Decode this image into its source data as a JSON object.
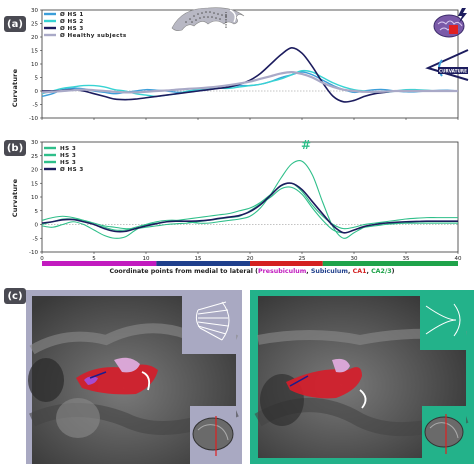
{
  "panels": {
    "a": {
      "badge": "(a)"
    },
    "b": {
      "badge": "(b)"
    },
    "c": {
      "badge": "(c)"
    }
  },
  "y_axis_label": "Curvature",
  "x_axis_caption": {
    "prefix": "Coordinate points from medial to lateral (",
    "parts": [
      {
        "text": "Presubiculum",
        "color": "#c21bbf"
      },
      {
        "text": "Subiculum",
        "color": "#1f3f8c"
      },
      {
        "text": "CA1",
        "color": "#d42020"
      },
      {
        "text": "CA2/3",
        "color": "#1fa34a"
      }
    ],
    "separator": ", ",
    "suffix": ")"
  },
  "region_bar": [
    {
      "name": "presubiculum",
      "color": "#c21bbf",
      "from": 0,
      "to": 11
    },
    {
      "name": "subiculum",
      "color": "#1f3f8c",
      "from": 11,
      "to": 20
    },
    {
      "name": "ca1",
      "color": "#d42020",
      "from": 20,
      "to": 27
    },
    {
      "name": "ca23",
      "color": "#1fa34a",
      "from": 27,
      "to": 40
    }
  ],
  "curvature_icon_label": "CURVATURE",
  "significance_marker": "#",
  "colors": {
    "hs1": "#3c9ed9",
    "hs2": "#37d3d3",
    "hs3": "#1c1c5e",
    "healthy": "#a9a9c7",
    "hs3_individual": "#2fbf8a",
    "panel_badge": "#4a4a52",
    "left_bg": "#a9a9c2",
    "right_bg": "#23b28a"
  },
  "chart_data": [
    {
      "type": "line",
      "panel": "a",
      "x": [
        0,
        1,
        2,
        3,
        4,
        5,
        6,
        7,
        8,
        9,
        10,
        11,
        12,
        13,
        14,
        15,
        16,
        17,
        18,
        19,
        20,
        21,
        22,
        23,
        24,
        25,
        26,
        27,
        28,
        29,
        30,
        31,
        32,
        33,
        34,
        35,
        36,
        37,
        38,
        39,
        40
      ],
      "xlim": [
        0,
        40
      ],
      "xticks": [
        0,
        5,
        10,
        15,
        20,
        25,
        30,
        35,
        40
      ],
      "yticks": [
        -10,
        -5,
        0,
        5,
        10,
        15,
        20,
        25,
        30
      ],
      "ylim": [
        -10,
        30
      ],
      "ylabel": "Curvature",
      "legend_position": "top-left",
      "series": [
        {
          "name": "Ø HS 1",
          "color": "#3c9ed9",
          "width": 1.4,
          "values": [
            -2,
            -1,
            0.5,
            1,
            0.8,
            0,
            -0.5,
            -1,
            -0.5,
            0,
            0.5,
            0.3,
            0,
            -0.5,
            -0.3,
            0,
            0.5,
            1,
            1.5,
            2,
            2,
            2.5,
            3.5,
            5,
            6,
            7,
            6,
            4,
            2,
            0.5,
            -0.5,
            0,
            0.5,
            0.5,
            0,
            -0.3,
            -0.3,
            0,
            0.2,
            0.3,
            0
          ]
        },
        {
          "name": "Ø HS 2",
          "color": "#37d3d3",
          "width": 1.4,
          "values": [
            -1,
            0,
            1,
            1.5,
            2,
            2,
            1.5,
            0.5,
            0,
            -1,
            -1.5,
            -2,
            -1.5,
            -1,
            0,
            0.5,
            1,
            1,
            1,
            1.5,
            2,
            2.5,
            3.5,
            4.5,
            6,
            7.5,
            7,
            5,
            3,
            1.5,
            0.5,
            0,
            -0.5,
            -0.5,
            0,
            0.5,
            0.5,
            0.3,
            0,
            0,
            0
          ]
        },
        {
          "name": "Ø HS 3",
          "color": "#1c1c5e",
          "width": 1.6,
          "values": [
            0,
            0,
            0.2,
            0.5,
            0,
            -1,
            -2,
            -3,
            -3.2,
            -3,
            -2.5,
            -2,
            -1.5,
            -1,
            -0.5,
            0,
            0.5,
            1,
            1.5,
            2.5,
            4,
            6.5,
            10,
            13.5,
            16,
            14,
            9,
            3,
            -2,
            -4,
            -3.5,
            -2,
            -1,
            -0.5,
            0,
            0,
            0,
            0,
            0,
            0,
            0
          ]
        },
        {
          "name": "Ø Healthy subjects",
          "color": "#a9a9c7",
          "width": 2.2,
          "values": [
            -0.5,
            -0.3,
            0,
            0.3,
            0.5,
            0.3,
            0,
            -0.3,
            -0.5,
            -0.5,
            -0.3,
            0,
            0.2,
            0.5,
            0.8,
            1,
            1.3,
            1.7,
            2.2,
            2.8,
            3.5,
            4.5,
            5.5,
            6.5,
            7,
            6.3,
            5,
            3,
            1.5,
            0.5,
            0,
            -0.3,
            -0.3,
            -0.2,
            0,
            0,
            0,
            0,
            0,
            0,
            0
          ]
        }
      ]
    },
    {
      "type": "line",
      "panel": "b",
      "x": [
        0,
        1,
        2,
        3,
        4,
        5,
        6,
        7,
        8,
        9,
        10,
        11,
        12,
        13,
        14,
        15,
        16,
        17,
        18,
        19,
        20,
        21,
        22,
        23,
        24,
        25,
        26,
        27,
        28,
        29,
        30,
        31,
        32,
        33,
        34,
        35,
        36,
        37,
        38,
        39,
        40
      ],
      "xlim": [
        0,
        40
      ],
      "xticks": [
        0,
        5,
        10,
        15,
        20,
        25,
        30,
        35,
        40
      ],
      "xticklabels": [
        "0",
        "5",
        "10",
        "15",
        "20",
        "25",
        "30",
        "35",
        "40"
      ],
      "yticks": [
        -10,
        -5,
        0,
        5,
        10,
        15,
        20,
        25,
        30
      ],
      "ylim": [
        -10,
        30
      ],
      "ylabel": "Curvature",
      "legend_position": "top-left",
      "series": [
        {
          "name": "HS 3",
          "color": "#2fbf8a",
          "width": 1.1,
          "values": [
            0,
            1,
            2,
            2,
            1.5,
            0.5,
            -0.5,
            -1,
            -1.5,
            -1.5,
            -1,
            -0.5,
            0,
            0.3,
            0.5,
            1,
            1.5,
            2,
            2.5,
            3,
            5,
            7.5,
            10,
            13,
            13.5,
            11,
            6,
            1.5,
            -2,
            -3,
            -2,
            -1,
            -0.5,
            0,
            0.3,
            0.5,
            0.5,
            0.5,
            0.5,
            0.5,
            0.5
          ]
        },
        {
          "name": "HS 3",
          "color": "#2fbf8a",
          "width": 1.1,
          "values": [
            -0.5,
            -1,
            0,
            1,
            0,
            -2,
            -4,
            -5,
            -4.5,
            -2,
            0,
            1,
            1.5,
            1.5,
            1,
            0.5,
            0.5,
            1,
            1.5,
            2,
            3,
            6,
            11,
            17,
            22,
            23,
            18,
            8,
            -1,
            -5,
            -3,
            -1,
            0,
            0.5,
            0.5,
            0.5,
            0.5,
            0.5,
            0.5,
            0.5,
            0.5
          ]
        },
        {
          "name": "HS 3",
          "color": "#2fbf8a",
          "width": 1.1,
          "values": [
            1.5,
            2.5,
            3,
            2.5,
            1.5,
            0,
            -1,
            -2,
            -2,
            -1,
            0,
            0.5,
            1,
            1.5,
            2,
            2.5,
            3,
            3.5,
            4,
            5,
            6,
            8,
            11,
            14,
            15,
            12,
            7,
            3,
            0,
            -1.5,
            -1,
            0,
            0.5,
            1,
            1.5,
            2,
            2.3,
            2.5,
            2.5,
            2.5,
            2.5
          ]
        },
        {
          "name": "Ø HS 3",
          "color": "#1c1c5e",
          "width": 1.6,
          "values": [
            0.5,
            1,
            1.7,
            1.8,
            1,
            0,
            -1.5,
            -2.5,
            -2.5,
            -1.5,
            -0.5,
            0.3,
            1,
            1.2,
            1.2,
            1.3,
            1.6,
            2.2,
            2.7,
            3.3,
            4.7,
            7.2,
            10.7,
            14.2,
            15,
            12.7,
            8.3,
            3.8,
            -0.5,
            -3,
            -2,
            -0.7,
            0,
            0.5,
            0.8,
            1,
            1.1,
            1.2,
            1.2,
            1.2,
            1.2
          ]
        }
      ]
    }
  ]
}
